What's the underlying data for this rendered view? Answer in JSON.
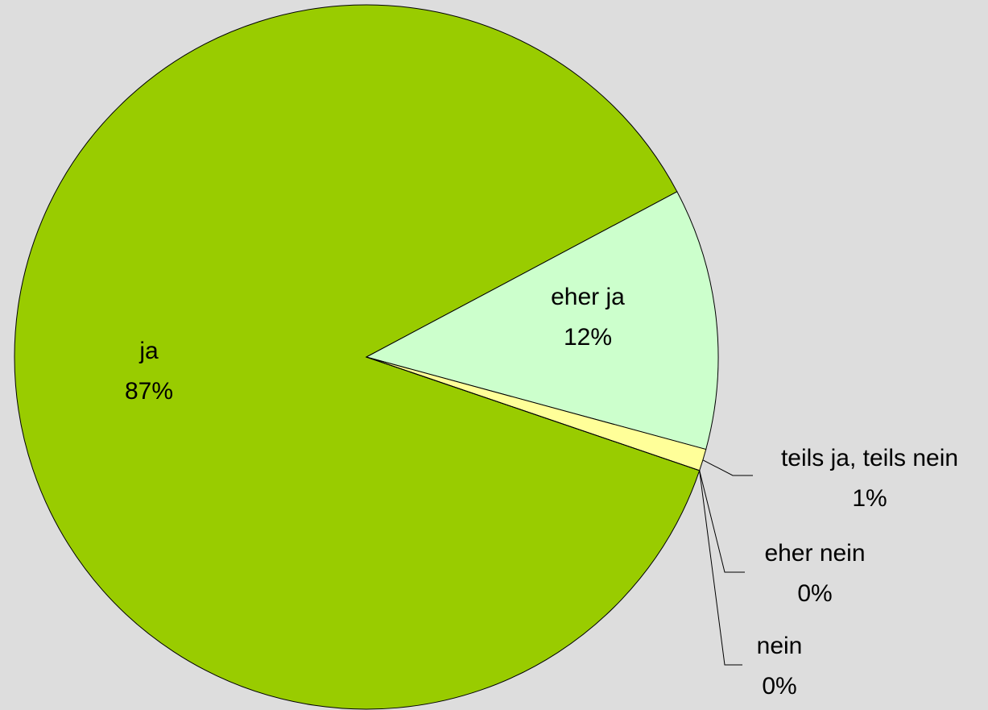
{
  "chart_data": {
    "type": "pie",
    "categories": [
      "ja",
      "eher ja",
      "teils ja, teils nein",
      "eher nein",
      "nein"
    ],
    "values": [
      87,
      12,
      1,
      0,
      0
    ],
    "value_labels": [
      "87%",
      "12%",
      "1%",
      "0%",
      "0%"
    ],
    "colors": [
      "#99cc00",
      "#ccffcc",
      "#ffff99",
      "#ffcc99",
      "#ff9999"
    ]
  }
}
